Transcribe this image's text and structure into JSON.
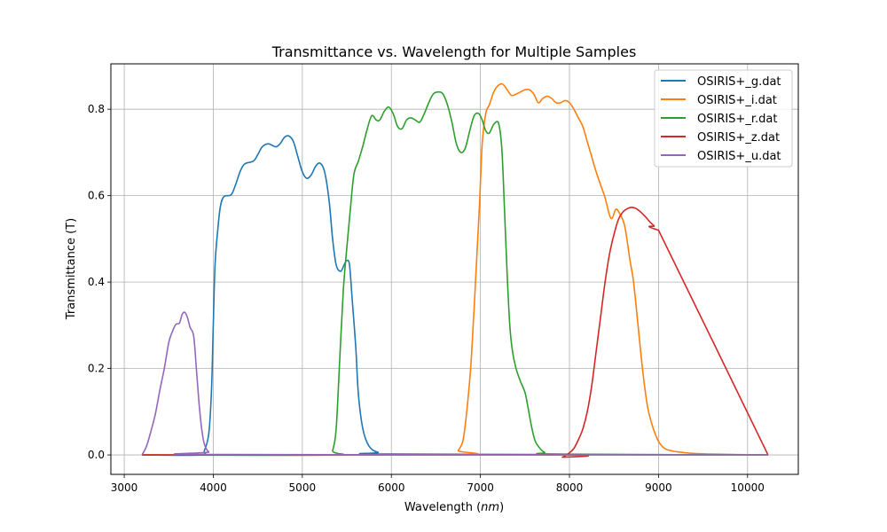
{
  "chart_data": {
    "type": "line",
    "title": "Transmittance vs. Wavelength for Multiple Samples",
    "xlabel": "Wavelength (",
    "xlabel_unit": "nm",
    "xlabel_suffix": ")",
    "ylabel": "Transmittance (T)",
    "xlim": [
      2850,
      10570
    ],
    "ylim": [
      -0.045,
      0.905
    ],
    "xticks": [
      3000,
      4000,
      5000,
      6000,
      7000,
      8000,
      9000,
      10000
    ],
    "yticks": [
      0.0,
      0.2,
      0.4,
      0.6,
      0.8
    ],
    "xtick_labels": [
      "3000",
      "4000",
      "5000",
      "6000",
      "7000",
      "8000",
      "9000",
      "10000"
    ],
    "ytick_labels": [
      "0.0",
      "0.2",
      "0.4",
      "0.6",
      "0.8"
    ],
    "grid": true,
    "legend_position": "top-right",
    "series": [
      {
        "name": "OSIRIS+_g.dat",
        "color": "#1f77b4",
        "points": [
          [
            3200,
            0
          ],
          [
            3850,
            0
          ],
          [
            3900,
            0.01
          ],
          [
            3950,
            0.05
          ],
          [
            3980,
            0.15
          ],
          [
            4000,
            0.3
          ],
          [
            4020,
            0.44
          ],
          [
            4050,
            0.52
          ],
          [
            4080,
            0.575
          ],
          [
            4120,
            0.598
          ],
          [
            4200,
            0.602
          ],
          [
            4250,
            0.625
          ],
          [
            4300,
            0.655
          ],
          [
            4350,
            0.673
          ],
          [
            4450,
            0.68
          ],
          [
            4500,
            0.695
          ],
          [
            4550,
            0.713
          ],
          [
            4620,
            0.72
          ],
          [
            4700,
            0.713
          ],
          [
            4750,
            0.72
          ],
          [
            4800,
            0.735
          ],
          [
            4850,
            0.738
          ],
          [
            4900,
            0.725
          ],
          [
            4950,
            0.69
          ],
          [
            5000,
            0.655
          ],
          [
            5050,
            0.64
          ],
          [
            5100,
            0.648
          ],
          [
            5150,
            0.668
          ],
          [
            5200,
            0.675
          ],
          [
            5250,
            0.655
          ],
          [
            5300,
            0.59
          ],
          [
            5340,
            0.5
          ],
          [
            5380,
            0.44
          ],
          [
            5430,
            0.425
          ],
          [
            5470,
            0.44
          ],
          [
            5500,
            0.45
          ],
          [
            5530,
            0.44
          ],
          [
            5560,
            0.36
          ],
          [
            5600,
            0.25
          ],
          [
            5630,
            0.14
          ],
          [
            5680,
            0.06
          ],
          [
            5750,
            0.02
          ],
          [
            5850,
            0.006
          ],
          [
            6000,
            0.002
          ],
          [
            10230,
            0
          ]
        ]
      },
      {
        "name": "OSIRIS+_i.dat",
        "color": "#ff7f0e",
        "points": [
          [
            3200,
            0
          ],
          [
            6700,
            0
          ],
          [
            6750,
            0.01
          ],
          [
            6800,
            0.03
          ],
          [
            6830,
            0.07
          ],
          [
            6870,
            0.15
          ],
          [
            6900,
            0.23
          ],
          [
            6950,
            0.42
          ],
          [
            6990,
            0.58
          ],
          [
            7020,
            0.72
          ],
          [
            7060,
            0.79
          ],
          [
            7100,
            0.81
          ],
          [
            7150,
            0.84
          ],
          [
            7200,
            0.855
          ],
          [
            7250,
            0.858
          ],
          [
            7300,
            0.845
          ],
          [
            7350,
            0.832
          ],
          [
            7400,
            0.835
          ],
          [
            7450,
            0.84
          ],
          [
            7500,
            0.845
          ],
          [
            7550,
            0.845
          ],
          [
            7600,
            0.835
          ],
          [
            7650,
            0.815
          ],
          [
            7700,
            0.825
          ],
          [
            7750,
            0.83
          ],
          [
            7800,
            0.825
          ],
          [
            7850,
            0.815
          ],
          [
            7900,
            0.815
          ],
          [
            7950,
            0.82
          ],
          [
            8000,
            0.815
          ],
          [
            8050,
            0.8
          ],
          [
            8100,
            0.78
          ],
          [
            8150,
            0.76
          ],
          [
            8200,
            0.725
          ],
          [
            8250,
            0.69
          ],
          [
            8300,
            0.655
          ],
          [
            8350,
            0.625
          ],
          [
            8400,
            0.595
          ],
          [
            8450,
            0.555
          ],
          [
            8480,
            0.548
          ],
          [
            8520,
            0.568
          ],
          [
            8560,
            0.56
          ],
          [
            8620,
            0.53
          ],
          [
            8680,
            0.45
          ],
          [
            8720,
            0.4
          ],
          [
            8770,
            0.3
          ],
          [
            8820,
            0.2
          ],
          [
            8870,
            0.12
          ],
          [
            8920,
            0.075
          ],
          [
            8970,
            0.045
          ],
          [
            9020,
            0.025
          ],
          [
            9100,
            0.012
          ],
          [
            9300,
            0.005
          ],
          [
            9600,
            0.002
          ],
          [
            10230,
            0
          ]
        ]
      },
      {
        "name": "OSIRIS+_r.dat",
        "color": "#2ca02c",
        "points": [
          [
            3200,
            0
          ],
          [
            5300,
            0
          ],
          [
            5340,
            0.01
          ],
          [
            5380,
            0.06
          ],
          [
            5420,
            0.22
          ],
          [
            5460,
            0.38
          ],
          [
            5500,
            0.48
          ],
          [
            5540,
            0.57
          ],
          [
            5580,
            0.65
          ],
          [
            5630,
            0.68
          ],
          [
            5680,
            0.715
          ],
          [
            5730,
            0.755
          ],
          [
            5780,
            0.785
          ],
          [
            5830,
            0.775
          ],
          [
            5870,
            0.775
          ],
          [
            5920,
            0.795
          ],
          [
            5970,
            0.805
          ],
          [
            6020,
            0.79
          ],
          [
            6070,
            0.76
          ],
          [
            6120,
            0.755
          ],
          [
            6170,
            0.775
          ],
          [
            6220,
            0.78
          ],
          [
            6270,
            0.775
          ],
          [
            6320,
            0.77
          ],
          [
            6370,
            0.79
          ],
          [
            6420,
            0.815
          ],
          [
            6470,
            0.835
          ],
          [
            6530,
            0.84
          ],
          [
            6580,
            0.835
          ],
          [
            6630,
            0.81
          ],
          [
            6680,
            0.77
          ],
          [
            6730,
            0.72
          ],
          [
            6780,
            0.7
          ],
          [
            6830,
            0.71
          ],
          [
            6880,
            0.75
          ],
          [
            6930,
            0.785
          ],
          [
            6980,
            0.79
          ],
          [
            7020,
            0.775
          ],
          [
            7060,
            0.75
          ],
          [
            7100,
            0.745
          ],
          [
            7150,
            0.765
          ],
          [
            7200,
            0.77
          ],
          [
            7240,
            0.71
          ],
          [
            7270,
            0.57
          ],
          [
            7300,
            0.42
          ],
          [
            7330,
            0.3
          ],
          [
            7360,
            0.24
          ],
          [
            7400,
            0.2
          ],
          [
            7450,
            0.17
          ],
          [
            7500,
            0.145
          ],
          [
            7530,
            0.115
          ],
          [
            7570,
            0.07
          ],
          [
            7610,
            0.035
          ],
          [
            7650,
            0.02
          ],
          [
            7720,
            0.006
          ],
          [
            7850,
            0.002
          ],
          [
            10230,
            0
          ]
        ]
      },
      {
        "name": "OSIRIS+_z.dat",
        "color": "#d62728",
        "points": [
          [
            3200,
            0
          ],
          [
            7850,
            0
          ],
          [
            7920,
            -0.005
          ],
          [
            8000,
            0.005
          ],
          [
            8050,
            0.015
          ],
          [
            8100,
            0.035
          ],
          [
            8150,
            0.06
          ],
          [
            8200,
            0.1
          ],
          [
            8250,
            0.16
          ],
          [
            8300,
            0.24
          ],
          [
            8350,
            0.32
          ],
          [
            8400,
            0.4
          ],
          [
            8450,
            0.465
          ],
          [
            8500,
            0.51
          ],
          [
            8550,
            0.545
          ],
          [
            8600,
            0.562
          ],
          [
            8650,
            0.57
          ],
          [
            8700,
            0.573
          ],
          [
            8750,
            0.57
          ],
          [
            8800,
            0.562
          ],
          [
            8850,
            0.552
          ],
          [
            8900,
            0.54
          ],
          [
            8950,
            0.53
          ],
          [
            9000,
            0.52
          ],
          [
            10230,
            0
          ]
        ]
      },
      {
        "name": "OSIRIS+_u.dat",
        "color": "#9467bd",
        "points": [
          [
            3200,
            0
          ],
          [
            3250,
            0.02
          ],
          [
            3300,
            0.055
          ],
          [
            3350,
            0.095
          ],
          [
            3400,
            0.15
          ],
          [
            3450,
            0.2
          ],
          [
            3500,
            0.26
          ],
          [
            3540,
            0.285
          ],
          [
            3580,
            0.302
          ],
          [
            3620,
            0.305
          ],
          [
            3650,
            0.325
          ],
          [
            3680,
            0.33
          ],
          [
            3710,
            0.318
          ],
          [
            3740,
            0.295
          ],
          [
            3780,
            0.275
          ],
          [
            3810,
            0.2
          ],
          [
            3840,
            0.12
          ],
          [
            3870,
            0.06
          ],
          [
            3900,
            0.025
          ],
          [
            3950,
            0.007
          ],
          [
            4050,
            0.001
          ],
          [
            10230,
            0
          ]
        ]
      }
    ]
  }
}
